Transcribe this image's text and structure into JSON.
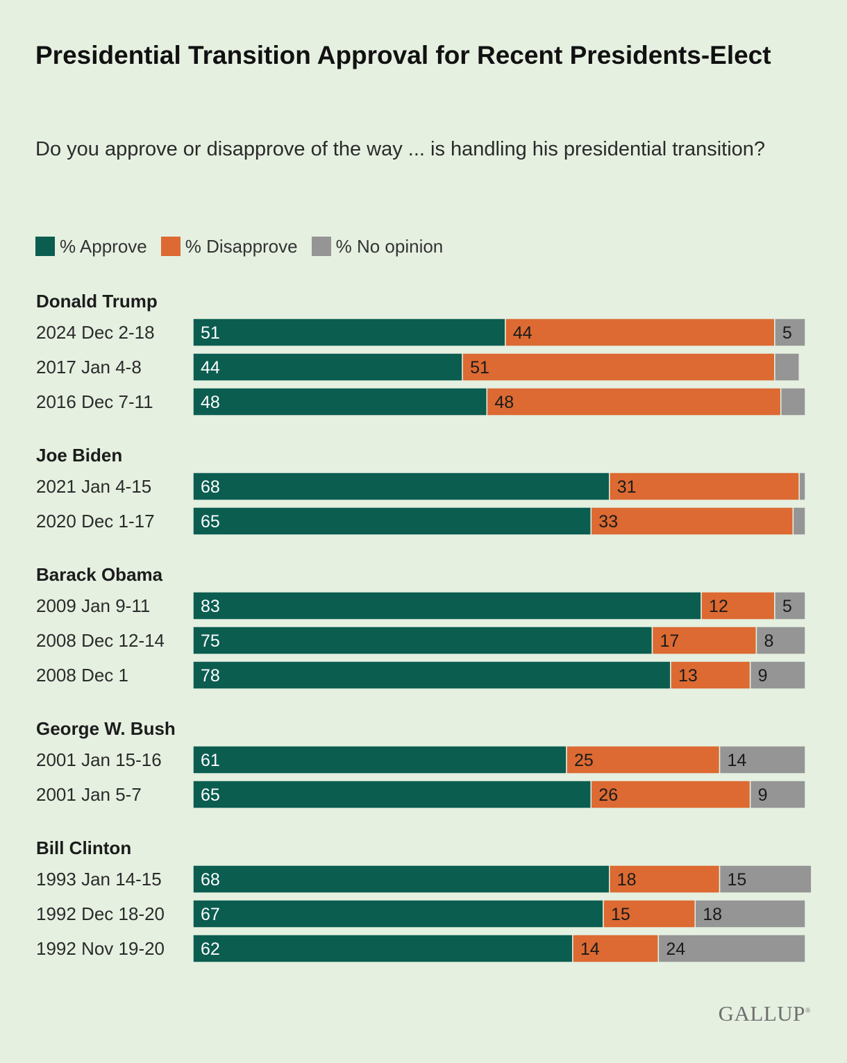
{
  "title": "Presidential Transition Approval for Recent Presidents-Elect",
  "subtitle": "Do you approve or disapprove of the way ... is handling his presidential transition?",
  "logo": "GALLUP",
  "colors": {
    "approve": "#0b5d50",
    "disapprove": "#dc6a32",
    "no_opinion": "#959595",
    "background": "#e5f0e1"
  },
  "legend": [
    {
      "label": "% Approve",
      "color": "#0b5d50"
    },
    {
      "label": "% Disapprove",
      "color": "#dc6a32"
    },
    {
      "label": "% No opinion",
      "color": "#959595"
    }
  ],
  "chart_data": {
    "type": "bar",
    "orientation": "horizontal",
    "stacked": true,
    "series_names": [
      "% Approve",
      "% Disapprove",
      "% No opinion"
    ],
    "groups": [
      {
        "name": "Donald Trump",
        "rows": [
          {
            "label": "2024 Dec 2-18",
            "approve": 51,
            "disapprove": 44,
            "no_opinion": 5,
            "show_no_opinion_label": true
          },
          {
            "label": "2017 Jan 4-8",
            "approve": 44,
            "disapprove": 51,
            "no_opinion": 4,
            "show_no_opinion_label": false
          },
          {
            "label": "2016 Dec 7-11",
            "approve": 48,
            "disapprove": 48,
            "no_opinion": 4,
            "show_no_opinion_label": false
          }
        ]
      },
      {
        "name": "Joe Biden",
        "rows": [
          {
            "label": "2021 Jan 4-15",
            "approve": 68,
            "disapprove": 31,
            "no_opinion": 1,
            "show_no_opinion_label": false
          },
          {
            "label": "2020 Dec 1-17",
            "approve": 65,
            "disapprove": 33,
            "no_opinion": 2,
            "show_no_opinion_label": false
          }
        ]
      },
      {
        "name": "Barack Obama",
        "rows": [
          {
            "label": "2009 Jan 9-11",
            "approve": 83,
            "disapprove": 12,
            "no_opinion": 5,
            "show_no_opinion_label": true
          },
          {
            "label": "2008 Dec 12-14",
            "approve": 75,
            "disapprove": 17,
            "no_opinion": 8,
            "show_no_opinion_label": true
          },
          {
            "label": "2008 Dec 1",
            "approve": 78,
            "disapprove": 13,
            "no_opinion": 9,
            "show_no_opinion_label": true
          }
        ]
      },
      {
        "name": "George W. Bush",
        "rows": [
          {
            "label": "2001 Jan 15-16",
            "approve": 61,
            "disapprove": 25,
            "no_opinion": 14,
            "show_no_opinion_label": true
          },
          {
            "label": "2001 Jan 5-7",
            "approve": 65,
            "disapprove": 26,
            "no_opinion": 9,
            "show_no_opinion_label": true
          }
        ]
      },
      {
        "name": "Bill Clinton",
        "rows": [
          {
            "label": "1993 Jan 14-15",
            "approve": 68,
            "disapprove": 18,
            "no_opinion": 15,
            "show_no_opinion_label": true
          },
          {
            "label": "1992 Dec 18-20",
            "approve": 67,
            "disapprove": 15,
            "no_opinion": 18,
            "show_no_opinion_label": true
          },
          {
            "label": "1992 Nov 19-20",
            "approve": 62,
            "disapprove": 14,
            "no_opinion": 24,
            "show_no_opinion_label": true
          }
        ]
      }
    ],
    "xlim": [
      0,
      100
    ],
    "grid": false,
    "legend_position": "top-left"
  }
}
